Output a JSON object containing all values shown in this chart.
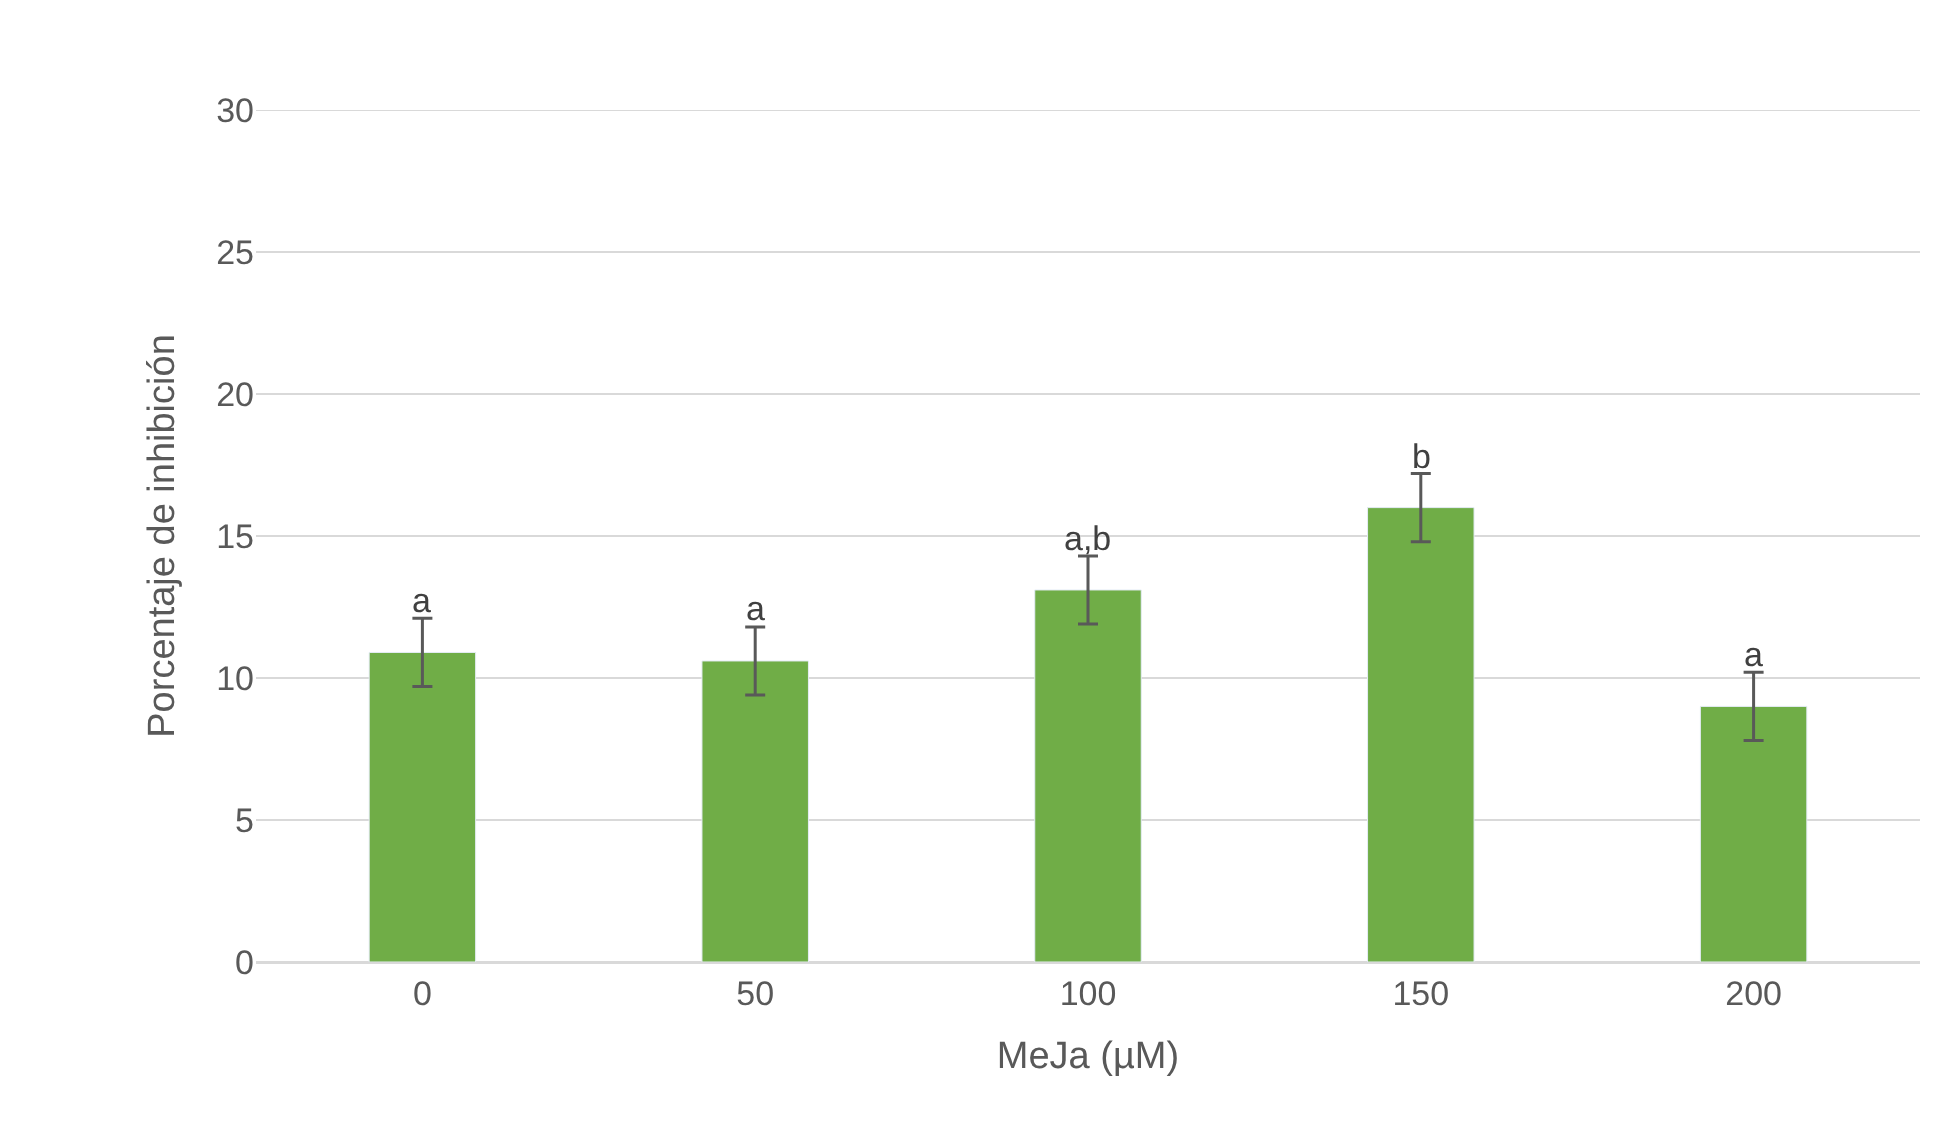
{
  "chart_data": {
    "type": "bar",
    "xlabel": "MeJa (µM)",
    "ylabel": "Porcentaje de inhibición",
    "categories": [
      "0",
      "50",
      "100",
      "150",
      "200"
    ],
    "values": [
      10.9,
      10.6,
      13.1,
      16.0,
      9.0
    ],
    "errors": [
      1.2,
      1.2,
      1.2,
      1.2,
      1.2
    ],
    "color": "#70ad47",
    "ylim": [
      0,
      30
    ],
    "yticks": [
      0,
      5,
      10,
      15,
      20,
      25,
      30
    ],
    "grid": "y",
    "annotations": [
      {
        "text": "a",
        "x": "0",
        "y": 12.1
      },
      {
        "text": "a",
        "x": "50",
        "y": 11.8
      },
      {
        "text": "a,b",
        "x": "100",
        "y": 14.3
      },
      {
        "text": "b",
        "x": "150",
        "y": 17.2
      },
      {
        "text": "a",
        "x": "200",
        "y": 10.2
      }
    ]
  }
}
